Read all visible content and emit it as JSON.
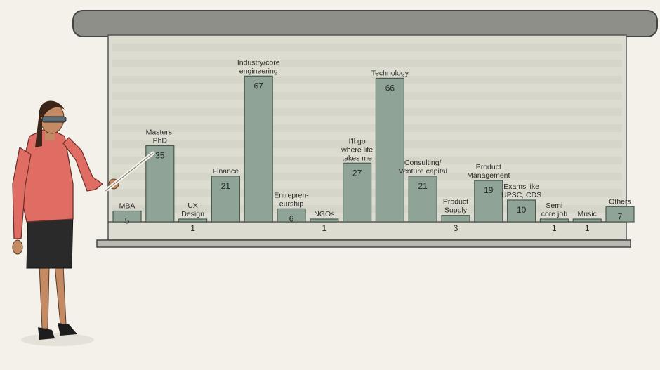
{
  "colors": {
    "background": "#f3f1ea",
    "screen": "#dcdcd0",
    "bar_fill": "#8fa497",
    "bar_stroke": "#4a5a50",
    "roller": "#8f8f8a",
    "jacket": "#df6d63",
    "skirt": "#2a2a2a"
  },
  "chart_data": {
    "type": "bar",
    "title": "",
    "xlabel": "",
    "ylabel": "",
    "ylim": [
      0,
      70
    ],
    "grid": false,
    "legend": "none",
    "categories": [
      [
        "MBA"
      ],
      [
        "Masters,",
        "PhD"
      ],
      [
        "UX",
        "Design"
      ],
      [
        "Finance"
      ],
      [
        "Industry/core",
        "engineering"
      ],
      [
        "Entrepren-",
        "eurship"
      ],
      [
        "NGOs"
      ],
      [
        "I'll go",
        "where life",
        "takes me"
      ],
      [
        "Technology"
      ],
      [
        "Consulting/",
        "Venture capital"
      ],
      [
        "Product",
        "Supply"
      ],
      [
        "Product",
        "Management"
      ],
      [
        "Exams like",
        "UPSC, CDS"
      ],
      [
        "Semi",
        "core job"
      ],
      [
        "Music"
      ],
      [
        "Others"
      ]
    ],
    "values": [
      5,
      35,
      1,
      21,
      67,
      6,
      1,
      27,
      66,
      21,
      3,
      19,
      10,
      1,
      1,
      7
    ],
    "value_labels": [
      "5",
      "35",
      "1",
      "21",
      "67",
      "6",
      "1",
      "27",
      "66",
      "21",
      "3",
      "19",
      "10",
      "1",
      "1",
      "7"
    ]
  }
}
